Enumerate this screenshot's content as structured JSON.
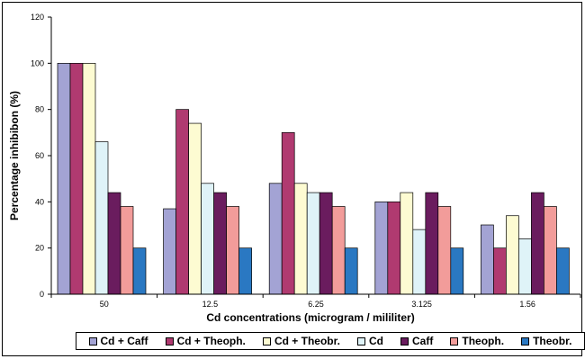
{
  "chart_data": {
    "type": "bar",
    "title": "",
    "xlabel": "Cd concentrations (microgram / mililiter)",
    "ylabel": "Percentage inhibibon (%)",
    "ylim": [
      0,
      120
    ],
    "yticks": [
      0,
      20,
      40,
      60,
      80,
      100,
      120
    ],
    "grid": false,
    "legend_position": "bottom",
    "categories": [
      "50",
      "12.5",
      "6.25",
      "3.125",
      "1.56"
    ],
    "series": [
      {
        "name": "Cd + Caff",
        "color": "#a3a3d4",
        "values": [
          100,
          37,
          48,
          40,
          30
        ]
      },
      {
        "name": "Cd + Theoph.",
        "color": "#b03a70",
        "values": [
          100,
          80,
          70,
          40,
          20
        ]
      },
      {
        "name": "Cd + Theobr.",
        "color": "#fdfbd2",
        "values": [
          100,
          74,
          48,
          44,
          34
        ]
      },
      {
        "name": "Cd",
        "color": "#dff3f8",
        "values": [
          66,
          48,
          44,
          28,
          24
        ]
      },
      {
        "name": "Caff",
        "color": "#6a1c5e",
        "values": [
          44,
          44,
          44,
          44,
          44
        ]
      },
      {
        "name": "Theoph.",
        "color": "#f29c9a",
        "values": [
          38,
          38,
          38,
          38,
          38
        ]
      },
      {
        "name": "Theobr.",
        "color": "#2a78c2",
        "values": [
          20,
          20,
          20,
          20,
          20
        ]
      }
    ]
  }
}
